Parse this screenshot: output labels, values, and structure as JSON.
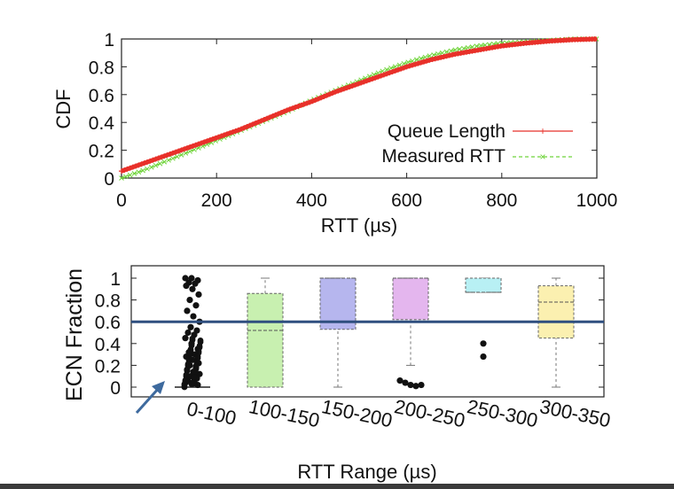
{
  "chart_data": [
    {
      "type": "line",
      "xlabel": "RTT (µs)",
      "ylabel": "CDF",
      "xlim": [
        0,
        1000
      ],
      "ylim": [
        0,
        1
      ],
      "xticks": [
        "0",
        "200",
        "400",
        "600",
        "800",
        "1000"
      ],
      "yticks": [
        "0",
        "0.2",
        "0.4",
        "0.6",
        "0.8",
        "1"
      ],
      "legend_position": "bottom-right",
      "series": [
        {
          "name": "Queue Length",
          "color": "#e8312a",
          "marker": "plus",
          "x": [
            0,
            50,
            100,
            150,
            200,
            250,
            300,
            350,
            400,
            450,
            500,
            550,
            600,
            650,
            700,
            750,
            800,
            850,
            900,
            950,
            1000
          ],
          "y": [
            0.05,
            0.11,
            0.17,
            0.23,
            0.29,
            0.35,
            0.42,
            0.49,
            0.55,
            0.62,
            0.68,
            0.74,
            0.8,
            0.85,
            0.89,
            0.92,
            0.95,
            0.97,
            0.985,
            0.995,
            1.0
          ]
        },
        {
          "name": "Measured RTT",
          "color": "#6fd43a",
          "marker": "x",
          "x": [
            0,
            50,
            100,
            150,
            200,
            250,
            300,
            350,
            400,
            450,
            500,
            550,
            600,
            650,
            700,
            750,
            800,
            850,
            900,
            950,
            1000
          ],
          "y": [
            0.0,
            0.06,
            0.13,
            0.2,
            0.27,
            0.34,
            0.41,
            0.48,
            0.56,
            0.63,
            0.7,
            0.77,
            0.83,
            0.88,
            0.92,
            0.95,
            0.97,
            0.98,
            0.99,
            1.0,
            1.0
          ]
        }
      ]
    },
    {
      "type": "box",
      "xlabel": "RTT Range (µs)",
      "ylabel": "ECN Fraction",
      "ylim": [
        0,
        1
      ],
      "yticks": [
        "0",
        "0.2",
        "0.4",
        "0.6",
        "0.8",
        "1"
      ],
      "reference_line": 0.6,
      "reference_line_color": "#2f4f7f",
      "categories": [
        "0-100",
        "100-150",
        "150-200",
        "200-250",
        "250-300",
        "300-350"
      ],
      "boxes": [
        {
          "q1": 0.0,
          "median": 0.0,
          "q3": 0.0,
          "whisker_low": 0.0,
          "whisker_high": 0.0,
          "color": "#ffffff",
          "outliers": [
            1.0,
            1.0,
            0.98,
            0.96,
            0.95,
            0.93,
            0.9,
            0.85,
            0.8,
            0.75,
            0.7,
            0.65,
            0.6,
            0.55,
            0.52,
            0.5,
            0.48,
            0.45,
            0.4,
            0.35,
            0.32,
            0.3,
            0.28,
            0.25,
            0.22,
            0.2,
            0.18,
            0.16,
            0.14,
            0.12,
            0.1,
            0.08,
            0.06,
            0.05,
            0.04,
            0.03,
            0.02
          ]
        },
        {
          "q1": 0.0,
          "median": 0.52,
          "q3": 0.86,
          "whisker_low": 0.0,
          "whisker_high": 1.0,
          "color": "#c8f0b0",
          "outliers": []
        },
        {
          "q1": 0.53,
          "median": 1.0,
          "q3": 1.0,
          "whisker_low": 0.0,
          "whisker_high": 1.0,
          "color": "#b6b6ee",
          "outliers": []
        },
        {
          "q1": 0.62,
          "median": 1.0,
          "q3": 1.0,
          "whisker_low": 0.2,
          "whisker_high": 1.0,
          "color": "#e4b6ee",
          "outliers": [
            0.06,
            0.04,
            0.02,
            0.01,
            0.02
          ]
        },
        {
          "q1": 0.87,
          "median": 0.87,
          "q3": 1.0,
          "whisker_low": 0.87,
          "whisker_high": 1.0,
          "color": "#b8f0f4",
          "outliers": [
            0.4,
            0.28
          ]
        },
        {
          "q1": 0.45,
          "median": 0.78,
          "q3": 0.93,
          "whisker_low": 0.0,
          "whisker_high": 1.0,
          "color": "#fbf0b0",
          "outliers": []
        }
      ]
    }
  ]
}
